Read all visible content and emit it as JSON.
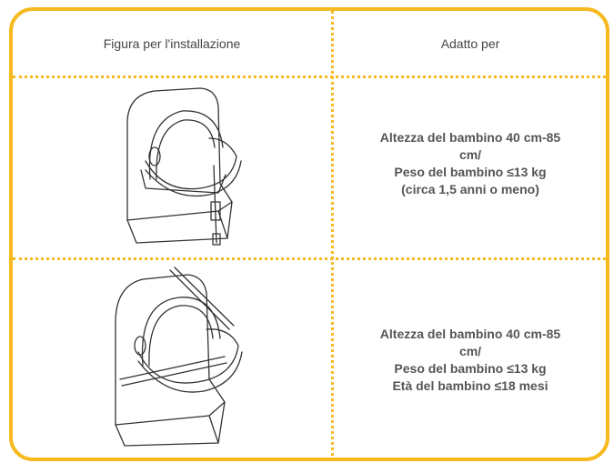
{
  "table": {
    "headers": [
      "Figura per l'installazione",
      "Adatto per"
    ],
    "rows": [
      {
        "lines": [
          "Altezza del bambino 40 cm-85",
          "cm/",
          "Peso del bambino ≤13 kg",
          "(circa 1,5 anni o meno)"
        ]
      },
      {
        "lines": [
          "Altezza del bambino 40 cm-85",
          "cm/",
          "Peso del bambino ≤13 kg",
          "Età del bambino ≤18 mesi"
        ]
      }
    ]
  }
}
